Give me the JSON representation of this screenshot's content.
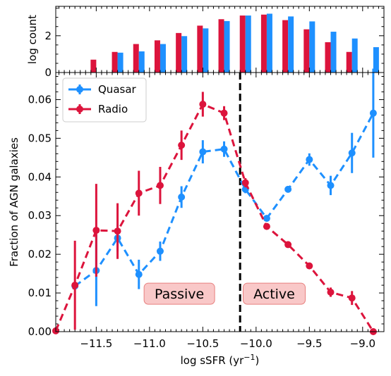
{
  "chart_data": [
    {
      "type": "bar",
      "panel": "top",
      "ylabel": "log count",
      "ylim": [
        0,
        3.6
      ],
      "yticks": [
        0,
        2
      ],
      "series": [
        {
          "name": "Radio",
          "color": "#dc143c",
          "x": [
            -11.5,
            -11.3,
            -11.1,
            -10.9,
            -10.7,
            -10.5,
            -10.3,
            -10.1,
            -9.9,
            -9.7,
            -9.5,
            -9.3,
            -9.1,
            -8.9
          ],
          "values": [
            0.7,
            1.12,
            1.55,
            1.75,
            2.15,
            2.55,
            2.9,
            3.1,
            3.15,
            2.85,
            2.35,
            1.65,
            1.12,
            0.0
          ]
        },
        {
          "name": "Quasar",
          "color": "#1e90ff",
          "x": [
            -11.3,
            -11.1,
            -10.9,
            -10.7,
            -10.5,
            -10.3,
            -10.1,
            -9.9,
            -9.7,
            -9.5,
            -9.3,
            -9.1,
            -8.9
          ],
          "values": [
            1.08,
            1.15,
            1.55,
            1.98,
            2.4,
            2.8,
            3.1,
            3.2,
            3.05,
            2.78,
            2.22,
            1.85,
            1.38
          ]
        }
      ]
    },
    {
      "type": "line",
      "panel": "main",
      "xlabel_main": "log sSFR (yr",
      "xlabel_sup": "−1",
      "xlabel_close": ")",
      "ylabel": "Fraction of AGN galaxies",
      "xlim": [
        -11.88,
        -8.8
      ],
      "ylim": [
        0.0,
        0.067
      ],
      "xticks": [
        -11.5,
        -11.0,
        -10.5,
        -10.0,
        -9.5,
        -9.0
      ],
      "xticklabels": [
        "−11.5",
        "−11.0",
        "−10.5",
        "−10.0",
        "−9.5",
        "−9.0"
      ],
      "yticks": [
        0.0,
        0.01,
        0.02,
        0.03,
        0.04,
        0.05,
        0.06
      ],
      "yticklabels": [
        "0.00",
        "0.01",
        "0.02",
        "0.03",
        "0.04",
        "0.05",
        "0.06"
      ],
      "divider_x": -10.15,
      "legend_position": "upper-left",
      "series": [
        {
          "name": "Quasar",
          "color": "#1e90ff",
          "x": [
            -11.7,
            -11.5,
            -11.3,
            -11.1,
            -10.9,
            -10.7,
            -10.5,
            -10.3,
            -10.1,
            -9.9,
            -9.7,
            -9.5,
            -9.3,
            -9.1,
            -8.9
          ],
          "y": [
            0.0118,
            0.0158,
            0.0242,
            0.0148,
            0.0208,
            0.0348,
            0.0465,
            0.0472,
            0.0368,
            0.0293,
            0.0368,
            0.0445,
            0.0378,
            0.0462,
            0.0565
          ],
          "err": [
            0.0,
            0.0092,
            0.0035,
            0.0038,
            0.0025,
            0.0028,
            0.003,
            0.002,
            0.001,
            0.0008,
            0.0008,
            0.0016,
            0.0025,
            0.0052,
            0.0115
          ]
        },
        {
          "name": "Radio",
          "color": "#dc143c",
          "x": [
            -11.88,
            -11.7,
            -11.5,
            -11.3,
            -11.1,
            -10.9,
            -10.7,
            -10.5,
            -10.3,
            -10.1,
            -9.9,
            -9.7,
            -9.5,
            -9.3,
            -9.1,
            -8.9
          ],
          "y": [
            0.0002,
            0.012,
            0.0262,
            0.026,
            0.0358,
            0.0378,
            0.0482,
            0.0588,
            0.0565,
            0.0385,
            0.0272,
            0.0225,
            0.017,
            0.0102,
            0.0087,
            0.0
          ],
          "err": [
            0.0,
            0.0115,
            0.012,
            0.0072,
            0.0058,
            0.0048,
            0.0038,
            0.0032,
            0.0018,
            0.0012,
            0.0008,
            0.0007,
            0.0007,
            0.0012,
            0.0018,
            0.0
          ]
        }
      ],
      "annotations": [
        {
          "text": "Passive",
          "x": -10.72,
          "y": 0.0098
        },
        {
          "text": "Active",
          "x": -9.83,
          "y": 0.0098
        }
      ],
      "annotation_colors": {
        "fill": "#f9c8c8",
        "edge": "#e8807f"
      }
    }
  ]
}
